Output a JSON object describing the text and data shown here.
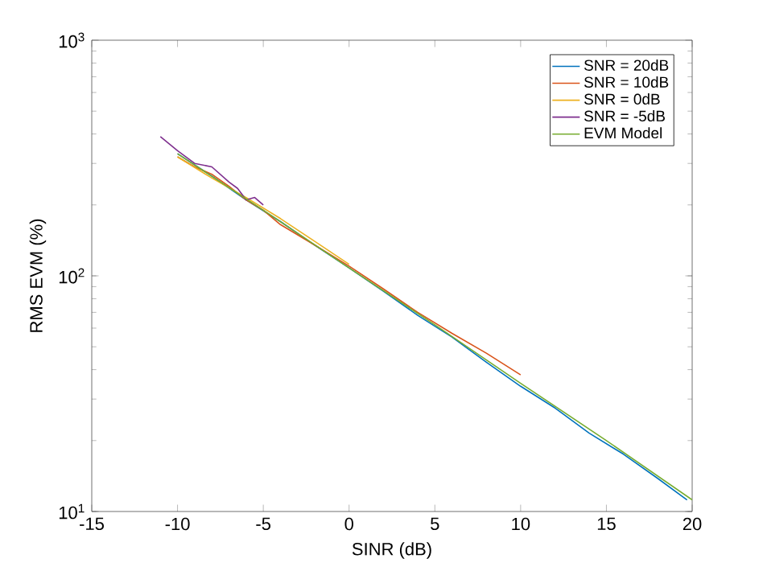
{
  "chart_data": {
    "type": "line",
    "xlabel": "SINR (dB)",
    "ylabel": "RMS EVM (%)",
    "log": "y",
    "xlim": [
      -15,
      20
    ],
    "xticks": [
      -15,
      -10,
      -5,
      0,
      5,
      10,
      15,
      20
    ],
    "ylim": [
      10,
      1000
    ],
    "yticks": [
      {
        "value": 10,
        "label": "10$^{1}$"
      },
      {
        "value": 100,
        "label": "10$^{2}$"
      },
      {
        "value": 1000,
        "label": "10$^{3}$"
      }
    ],
    "legend": "top right",
    "line_style": "solid",
    "marker": "none",
    "grid": false,
    "series": [
      {
        "name": "SNR = 20dB",
        "color": "#0072bd",
        "x": [
          -10,
          -8,
          -6,
          -4,
          -2,
          0,
          2,
          4,
          6,
          8,
          10,
          12,
          14,
          16,
          18,
          19.7
        ],
        "values": [
          330,
          265,
          210,
          170,
          135,
          108,
          86,
          68,
          55,
          43,
          34,
          27.5,
          21.5,
          17.5,
          13.8,
          11.2
        ]
      },
      {
        "name": "SNR = 10dB",
        "color": "#d95319",
        "x": [
          -10,
          -9,
          -8,
          -7,
          -6,
          -5,
          -4,
          -2,
          0,
          2,
          4,
          6,
          8,
          10
        ],
        "values": [
          320,
          290,
          270,
          240,
          210,
          190,
          165,
          135,
          110,
          88,
          70,
          57,
          47,
          38
        ]
      },
      {
        "name": "SNR = 0dB",
        "color": "#edb120",
        "x": [
          -10,
          -8,
          -6,
          -4,
          -2,
          0
        ],
        "values": [
          320,
          260,
          215,
          175,
          140,
          112
        ]
      },
      {
        "name": "SNR = -5dB",
        "color": "#7e2f8e",
        "x": [
          -11,
          -10,
          -9,
          -8,
          -7,
          -6.5,
          -6,
          -5.5,
          -5
        ],
        "values": [
          390,
          340,
          300,
          290,
          250,
          235,
          210,
          215,
          200
        ]
      },
      {
        "name": "EVM Model",
        "color": "#77ac30",
        "x": [
          -10,
          -5,
          0,
          5,
          10,
          15,
          20
        ],
        "values": [
          330,
          190,
          108,
          62,
          35,
          20,
          11.2
        ]
      }
    ]
  }
}
